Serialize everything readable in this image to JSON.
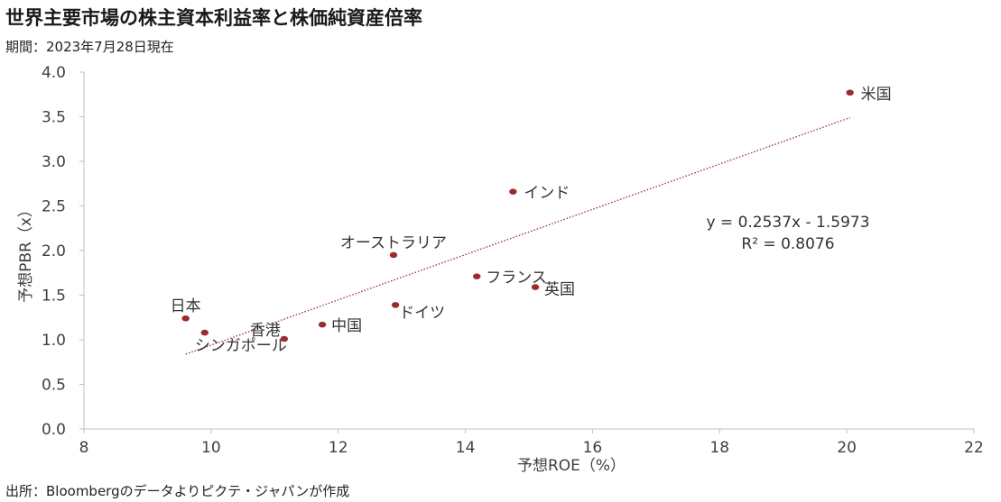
{
  "title": "世界主要市場の株主資本利益率と株価純資産倍率",
  "subtitle": "期間：2023年7月28日現在",
  "source": "出所：Bloombergのデータよりピクテ・ジャパンが作成",
  "colors": {
    "point": "#9b2c2c",
    "trend": "#9b2c2c",
    "axis": "#bfbfbf",
    "text": "#404040"
  },
  "chart_data": {
    "type": "scatter",
    "xlabel": "予想ROE（%）",
    "ylabel": "予想PBR（x）",
    "xlim": [
      8,
      22
    ],
    "ylim": [
      0,
      4
    ],
    "xticks": [
      "8",
      "10",
      "12",
      "14",
      "16",
      "18",
      "20",
      "22"
    ],
    "yticks": [
      "0.0",
      "0.5",
      "1.0",
      "1.5",
      "2.0",
      "2.5",
      "3.0",
      "3.5",
      "4.0"
    ],
    "grid": false,
    "points": [
      {
        "label": "米国",
        "x": 20.05,
        "y": 3.77
      },
      {
        "label": "インド",
        "x": 14.75,
        "y": 2.66
      },
      {
        "label": "オーストラリア",
        "x": 12.87,
        "y": 1.95
      },
      {
        "label": "フランス",
        "x": 14.18,
        "y": 1.71
      },
      {
        "label": "英国",
        "x": 15.1,
        "y": 1.59
      },
      {
        "label": "ドイツ",
        "x": 12.9,
        "y": 1.39
      },
      {
        "label": "日本",
        "x": 9.6,
        "y": 1.24
      },
      {
        "label": "シンガポール",
        "x": 9.9,
        "y": 1.08
      },
      {
        "label": "香港",
        "x": 11.15,
        "y": 1.01
      },
      {
        "label": "中国",
        "x": 11.75,
        "y": 1.17
      }
    ],
    "trendline": {
      "slope": 0.2537,
      "intercept": -1.5973,
      "x_range": [
        9.6,
        20.05
      ],
      "equation": "y = 0.2537x - 1.5973",
      "r2": "R² = 0.8076"
    }
  }
}
